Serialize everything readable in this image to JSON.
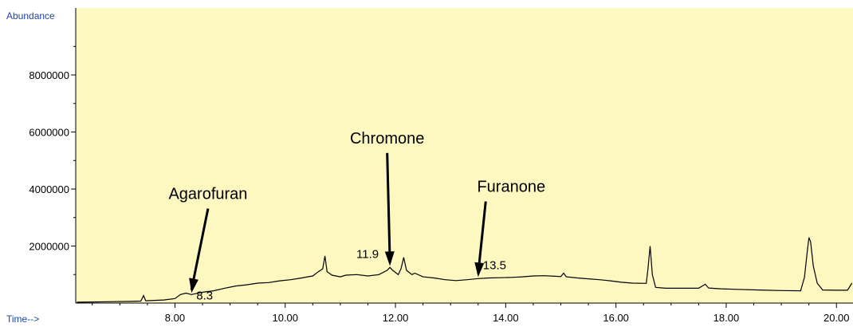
{
  "chart_data": {
    "type": "line",
    "y_title": "Abundance",
    "x_title": "Time-->",
    "xlim": [
      6.2,
      20.3
    ],
    "ylim": [
      0,
      10350000
    ],
    "x_ticks": [
      8.0,
      10.0,
      12.0,
      14.0,
      16.0,
      18.0,
      20.0
    ],
    "x_tick_labels": [
      "8.00",
      "10.00",
      "12.00",
      "14.00",
      "16.00",
      "18.00",
      "20.00"
    ],
    "y_ticks": [
      2000000,
      4000000,
      6000000,
      8000000
    ],
    "y_tick_labels": [
      "2000000",
      "4000000",
      "6000000",
      "8000000"
    ],
    "colors": {
      "plot_background": "#fcf8c0",
      "trace": "#000000",
      "axis_title": "#2244aa"
    },
    "series": [
      {
        "values": [
          [
            6.22,
            30000
          ],
          [
            6.5,
            40000
          ],
          [
            6.9,
            50000
          ],
          [
            7.2,
            60000
          ],
          [
            7.38,
            70000
          ],
          [
            7.43,
            260000
          ],
          [
            7.47,
            80000
          ],
          [
            7.8,
            110000
          ],
          [
            8.0,
            160000
          ],
          [
            8.1,
            300000
          ],
          [
            8.2,
            350000
          ],
          [
            8.3,
            300000
          ],
          [
            8.5,
            380000
          ],
          [
            8.7,
            430000
          ],
          [
            8.9,
            520000
          ],
          [
            9.1,
            600000
          ],
          [
            9.3,
            640000
          ],
          [
            9.5,
            700000
          ],
          [
            9.7,
            720000
          ],
          [
            9.9,
            780000
          ],
          [
            10.1,
            820000
          ],
          [
            10.3,
            880000
          ],
          [
            10.5,
            950000
          ],
          [
            10.6,
            1100000
          ],
          [
            10.68,
            1200000
          ],
          [
            10.72,
            1650000
          ],
          [
            10.76,
            1100000
          ],
          [
            10.85,
            980000
          ],
          [
            11.0,
            920000
          ],
          [
            11.1,
            980000
          ],
          [
            11.3,
            1000000
          ],
          [
            11.5,
            950000
          ],
          [
            11.7,
            1000000
          ],
          [
            11.85,
            1150000
          ],
          [
            11.9,
            1250000
          ],
          [
            11.95,
            1150000
          ],
          [
            12.05,
            1000000
          ],
          [
            12.1,
            1200000
          ],
          [
            12.15,
            1600000
          ],
          [
            12.2,
            1150000
          ],
          [
            12.3,
            1000000
          ],
          [
            12.35,
            1050000
          ],
          [
            12.5,
            920000
          ],
          [
            12.7,
            880000
          ],
          [
            12.9,
            820000
          ],
          [
            13.1,
            790000
          ],
          [
            13.3,
            820000
          ],
          [
            13.5,
            860000
          ],
          [
            13.7,
            880000
          ],
          [
            13.9,
            890000
          ],
          [
            14.1,
            900000
          ],
          [
            14.3,
            920000
          ],
          [
            14.5,
            950000
          ],
          [
            14.7,
            960000
          ],
          [
            14.9,
            940000
          ],
          [
            15.0,
            930000
          ],
          [
            15.05,
            1050000
          ],
          [
            15.1,
            920000
          ],
          [
            15.3,
            880000
          ],
          [
            15.5,
            850000
          ],
          [
            15.7,
            820000
          ],
          [
            15.9,
            780000
          ],
          [
            16.1,
            730000
          ],
          [
            16.3,
            700000
          ],
          [
            16.55,
            690000
          ],
          [
            16.58,
            1200000
          ],
          [
            16.62,
            2000000
          ],
          [
            16.66,
            1000000
          ],
          [
            16.72,
            550000
          ],
          [
            16.9,
            520000
          ],
          [
            17.2,
            520000
          ],
          [
            17.5,
            520000
          ],
          [
            17.62,
            660000
          ],
          [
            17.68,
            530000
          ],
          [
            17.9,
            500000
          ],
          [
            18.2,
            480000
          ],
          [
            18.6,
            460000
          ],
          [
            19.0,
            440000
          ],
          [
            19.35,
            430000
          ],
          [
            19.42,
            900000
          ],
          [
            19.47,
            1800000
          ],
          [
            19.5,
            2300000
          ],
          [
            19.53,
            2150000
          ],
          [
            19.58,
            1300000
          ],
          [
            19.65,
            700000
          ],
          [
            19.75,
            460000
          ],
          [
            20.0,
            450000
          ],
          [
            20.2,
            450000
          ],
          [
            20.28,
            700000
          ]
        ]
      }
    ],
    "annotations": [
      {
        "name": "Agarofuran",
        "rt_label": "8.3",
        "rt": 8.3,
        "y": 300000,
        "text_x": 8.6,
        "text_y": 3650000
      },
      {
        "name": "Chromone",
        "rt_label": "11.9",
        "rt": 11.9,
        "y": 1250000,
        "text_x": 11.85,
        "text_y": 5600000
      },
      {
        "name": "Furanone",
        "rt_label": "13.5",
        "rt": 13.5,
        "y": 860000,
        "text_x": 14.1,
        "text_y": 3900000
      }
    ]
  }
}
